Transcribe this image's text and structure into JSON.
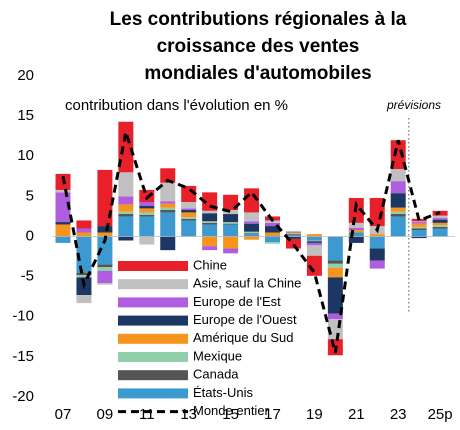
{
  "chart_data": {
    "type": "stacked-bar-line",
    "title": [
      "Les contributions régionales à la",
      "croissance des ventes",
      "mondiales d'automobiles"
    ],
    "subtitle": "contribution dans l'évolution en %",
    "annotation": "prévisions",
    "categories": [
      "07",
      null,
      "09",
      null,
      "11",
      null,
      "13",
      null,
      "15",
      null,
      "17",
      null,
      "19",
      null,
      "21",
      null,
      "23",
      null,
      "25p"
    ],
    "ylim": [
      -20,
      20
    ],
    "yticks": [
      -20,
      -15,
      -10,
      -5,
      0,
      5,
      10,
      15,
      20
    ],
    "series": [
      {
        "name": "Chine",
        "color": "#e8202a",
        "values": [
          2.0,
          1.0,
          7.0,
          6.3,
          1.5,
          1.8,
          2.0,
          2.3,
          1.9,
          3.0,
          0.5,
          -1.2,
          -2.5,
          -2.0,
          3.1,
          3.5,
          3.6,
          0.3,
          0.6
        ]
      },
      {
        "name": "Asie, sauf la Chine",
        "color": "#c0c0c0",
        "values": [
          0.3,
          -1.0,
          -0.2,
          3.0,
          -1.0,
          2.3,
          0.8,
          0.3,
          0.5,
          1.1,
          0.3,
          0.1,
          -1.3,
          -2.5,
          0.6,
          1.0,
          1.5,
          0.1,
          0.3
        ]
      },
      {
        "name": "Europe de l'Est",
        "color": "#b05ee0",
        "values": [
          3.7,
          0.5,
          -1.5,
          1.0,
          0.5,
          0.3,
          0.2,
          -0.5,
          -0.6,
          0.3,
          0.4,
          0.1,
          -0.3,
          -0.7,
          0.3,
          -1.0,
          1.5,
          0.2,
          0.2
        ]
      },
      {
        "name": "Europe de l'Ouest",
        "color": "#1c3764",
        "values": [
          0.3,
          -2.2,
          0.8,
          -0.5,
          0.3,
          -1.7,
          0.3,
          1.0,
          1.0,
          1.0,
          0.8,
          -0.3,
          -0.2,
          -4.5,
          -0.8,
          -1.5,
          1.8,
          -0.2,
          0.4
        ]
      },
      {
        "name": "Amérique du Sud",
        "color": "#f7941d",
        "values": [
          1.5,
          0.5,
          0.5,
          0.9,
          0.5,
          0.5,
          0.6,
          -1.2,
          -1.5,
          -0.4,
          0.4,
          0.1,
          0.3,
          -1.2,
          0.3,
          0.3,
          0.5,
          0.4,
          0.3
        ]
      },
      {
        "name": "Mexique",
        "color": "#8fcfa9",
        "values": [
          0,
          -0.3,
          -0.5,
          0.3,
          0.3,
          0.3,
          0.2,
          0.2,
          0.2,
          0.2,
          -0.2,
          0.1,
          -0.1,
          -0.5,
          0,
          0,
          0.3,
          0.2,
          0.2
        ]
      },
      {
        "name": "Canada",
        "color": "#555555",
        "values": [
          0,
          -0.3,
          -0.3,
          0.3,
          0.2,
          0.3,
          0.2,
          0.2,
          0.1,
          0.1,
          0.1,
          0.1,
          0,
          -0.4,
          0,
          0,
          0.3,
          0.2,
          0.2
        ]
      },
      {
        "name": "États-Unis",
        "color": "#3d9ad1",
        "values": [
          -0.8,
          -4.5,
          -3.5,
          2.5,
          2.5,
          3.0,
          2.0,
          1.5,
          1.5,
          0.3,
          -0.7,
          0.2,
          -0.5,
          -3.0,
          0.5,
          -1.5,
          2.5,
          0.8,
          1.0
        ]
      }
    ],
    "line_series": {
      "name": "Monde entier",
      "color": "#000000",
      "values": [
        7.5,
        -6.0,
        -0.5,
        13.0,
        4.8,
        7.0,
        6.0,
        3.8,
        3.1,
        5.5,
        2.0,
        -1.0,
        -4.5,
        -14.5,
        4.0,
        0.8,
        12.0,
        2.0,
        3.0
      ]
    }
  }
}
